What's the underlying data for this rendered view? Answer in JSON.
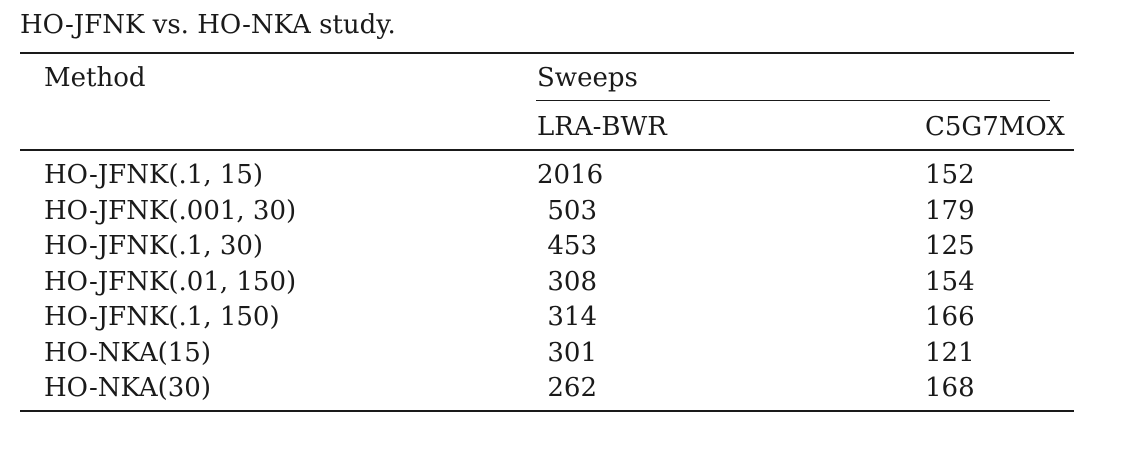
{
  "caption": "HO-JFNK vs. HO-NKA study.",
  "table": {
    "headers": {
      "method": "Method",
      "group": "Sweeps",
      "col1": "LRA-BWR",
      "col2": "C5G7MOX"
    },
    "rows": [
      {
        "method": "HO-JFNK(.1, 15)",
        "lra": "2016",
        "c5g": "152"
      },
      {
        "method": "HO-JFNK(.001, 30)",
        "lra": "503",
        "c5g": "179"
      },
      {
        "method": "HO-JFNK(.1, 30)",
        "lra": "453",
        "c5g": "125"
      },
      {
        "method": "HO-JFNK(.01, 150)",
        "lra": "308",
        "c5g": "154"
      },
      {
        "method": "HO-JFNK(.1, 150)",
        "lra": "314",
        "c5g": "166"
      },
      {
        "method": "HO-NKA(15)",
        "lra": "301",
        "c5g": "121"
      },
      {
        "method": "HO-NKA(30)",
        "lra": "262",
        "c5g": "168"
      }
    ]
  }
}
